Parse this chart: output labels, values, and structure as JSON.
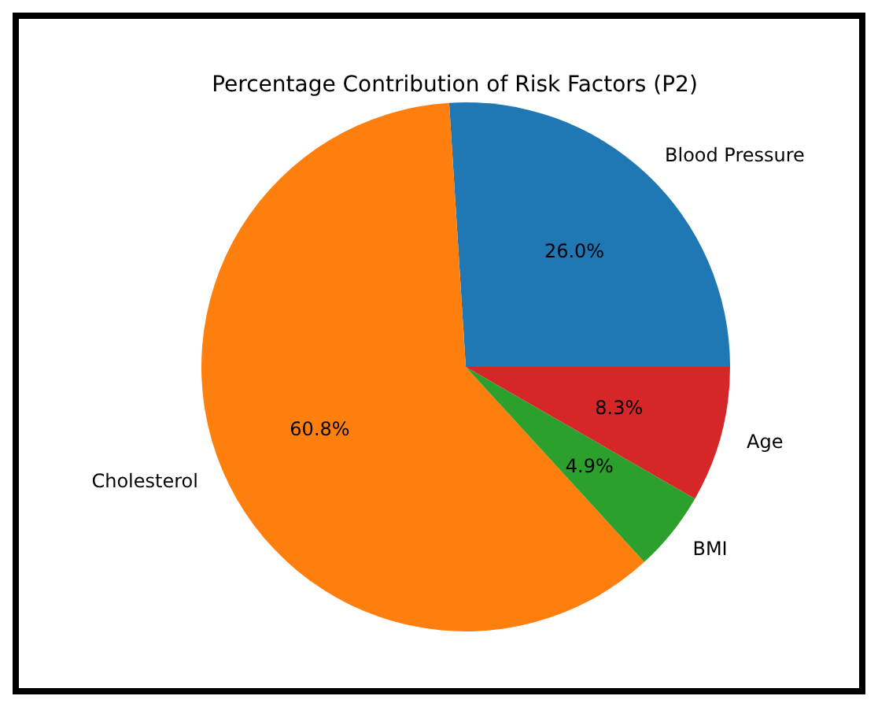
{
  "chart_data": {
    "type": "pie",
    "title": "Percentage Contribution of Risk Factors (P2)",
    "categories": [
      "Blood Pressure",
      "Cholesterol",
      "BMI",
      "Age"
    ],
    "values": [
      26.0,
      60.8,
      4.9,
      8.3
    ],
    "value_labels": [
      "26.0%",
      "60.8%",
      "4.9%",
      "8.3%"
    ],
    "colors": [
      "#1f77b4",
      "#ff7f0e",
      "#2ca02c",
      "#d62728"
    ]
  }
}
